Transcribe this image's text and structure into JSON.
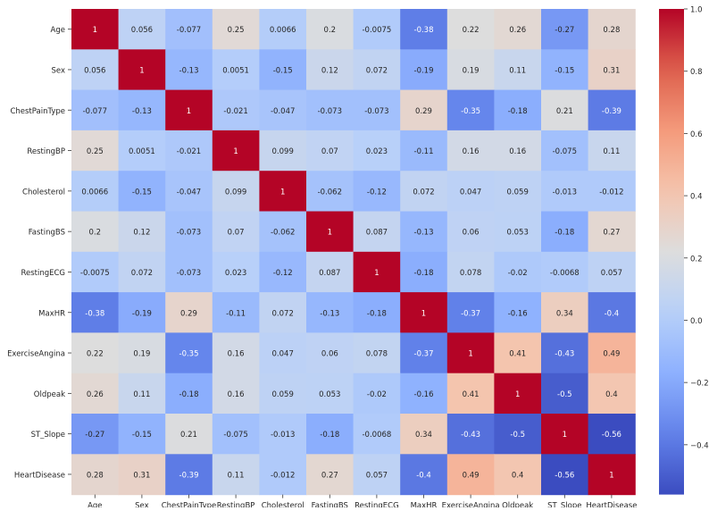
{
  "chart_data": {
    "type": "heatmap",
    "title": "",
    "xlabel": "",
    "ylabel": "",
    "x_labels": [
      "Age",
      "Sex",
      "ChestPainType",
      "RestingBP",
      "Cholesterol",
      "FastingBS",
      "RestingECG",
      "MaxHR",
      "ExerciseAngina",
      "Oldpeak",
      "ST_Slope",
      "HeartDisease"
    ],
    "y_labels": [
      "Age",
      "Sex",
      "ChestPainType",
      "RestingBP",
      "Cholesterol",
      "FastingBS",
      "RestingECG",
      "MaxHR",
      "ExerciseAngina",
      "Oldpeak",
      "ST_Slope",
      "HeartDisease"
    ],
    "values": [
      [
        1,
        0.056,
        -0.077,
        0.25,
        0.0066,
        0.2,
        -0.0075,
        -0.38,
        0.22,
        0.26,
        -0.27,
        0.28
      ],
      [
        0.056,
        1,
        -0.13,
        0.0051,
        -0.15,
        0.12,
        0.072,
        -0.19,
        0.19,
        0.11,
        -0.15,
        0.31
      ],
      [
        -0.077,
        -0.13,
        1,
        -0.021,
        -0.047,
        -0.073,
        -0.073,
        0.29,
        -0.35,
        -0.18,
        0.21,
        -0.39
      ],
      [
        0.25,
        0.0051,
        -0.021,
        1,
        0.099,
        0.07,
        0.023,
        -0.11,
        0.16,
        0.16,
        -0.075,
        0.11
      ],
      [
        0.0066,
        -0.15,
        -0.047,
        0.099,
        1,
        -0.062,
        -0.12,
        0.072,
        0.047,
        0.059,
        -0.013,
        -0.012
      ],
      [
        0.2,
        0.12,
        -0.073,
        0.07,
        -0.062,
        1,
        0.087,
        -0.13,
        0.06,
        0.053,
        -0.18,
        0.27
      ],
      [
        -0.0075,
        0.072,
        -0.073,
        0.023,
        -0.12,
        0.087,
        1,
        -0.18,
        0.078,
        -0.02,
        -0.0068,
        0.057
      ],
      [
        -0.38,
        -0.19,
        0.29,
        -0.11,
        0.072,
        -0.13,
        -0.18,
        1,
        -0.37,
        -0.16,
        0.34,
        -0.4
      ],
      [
        0.22,
        0.19,
        -0.35,
        0.16,
        0.047,
        0.06,
        0.078,
        -0.37,
        1,
        0.41,
        -0.43,
        0.49
      ],
      [
        0.26,
        0.11,
        -0.18,
        0.16,
        0.059,
        0.053,
        -0.02,
        -0.16,
        0.41,
        1,
        -0.5,
        0.4
      ],
      [
        -0.27,
        -0.15,
        0.21,
        -0.075,
        -0.013,
        -0.18,
        -0.0068,
        0.34,
        -0.43,
        -0.5,
        1,
        -0.56
      ],
      [
        0.28,
        0.31,
        -0.39,
        0.11,
        -0.012,
        0.27,
        0.057,
        -0.4,
        0.49,
        0.4,
        -0.56,
        1
      ]
    ],
    "colormap": "coolwarm",
    "color_range": [
      -0.56,
      1.0
    ],
    "colorbar_ticks": [
      "1.0",
      "0.8",
      "0.6",
      "0.4",
      "0.2",
      "0.0",
      "−0.2",
      "−0.4"
    ],
    "colorbar_tick_values": [
      1.0,
      0.8,
      0.6,
      0.4,
      0.2,
      0.0,
      -0.2,
      -0.4
    ],
    "annotation_labels": [
      [
        "1",
        "0.056",
        "-0.077",
        "0.25",
        "0.0066",
        "0.2",
        "-0.0075",
        "-0.38",
        "0.22",
        "0.26",
        "-0.27",
        "0.28"
      ],
      [
        "0.056",
        "1",
        "-0.13",
        "0.0051",
        "-0.15",
        "0.12",
        "0.072",
        "-0.19",
        "0.19",
        "0.11",
        "-0.15",
        "0.31"
      ],
      [
        "-0.077",
        "-0.13",
        "1",
        "-0.021",
        "-0.047",
        "-0.073",
        "-0.073",
        "0.29",
        "-0.35",
        "-0.18",
        "0.21",
        "-0.39"
      ],
      [
        "0.25",
        "0.0051",
        "-0.021",
        "1",
        "0.099",
        "0.07",
        "0.023",
        "-0.11",
        "0.16",
        "0.16",
        "-0.075",
        "0.11"
      ],
      [
        "0.0066",
        "-0.15",
        "-0.047",
        "0.099",
        "1",
        "-0.062",
        "-0.12",
        "0.072",
        "0.047",
        "0.059",
        "-0.013",
        "-0.012"
      ],
      [
        "0.2",
        "0.12",
        "-0.073",
        "0.07",
        "-0.062",
        "1",
        "0.087",
        "-0.13",
        "0.06",
        "0.053",
        "-0.18",
        "0.27"
      ],
      [
        "-0.0075",
        "0.072",
        "-0.073",
        "0.023",
        "-0.12",
        "0.087",
        "1",
        "-0.18",
        "0.078",
        "-0.02",
        "-0.0068",
        "0.057"
      ],
      [
        "-0.38",
        "-0.19",
        "0.29",
        "-0.11",
        "0.072",
        "-0.13",
        "-0.18",
        "1",
        "-0.37",
        "-0.16",
        "0.34",
        "-0.4"
      ],
      [
        "0.22",
        "0.19",
        "-0.35",
        "0.16",
        "0.047",
        "0.06",
        "0.078",
        "-0.37",
        "1",
        "0.41",
        "-0.43",
        "0.49"
      ],
      [
        "0.26",
        "0.11",
        "-0.18",
        "0.16",
        "0.059",
        "0.053",
        "-0.02",
        "-0.16",
        "0.41",
        "1",
        "-0.5",
        "0.4"
      ],
      [
        "-0.27",
        "-0.15",
        "0.21",
        "-0.075",
        "-0.013",
        "-0.18",
        "-0.0068",
        "0.34",
        "-0.43",
        "-0.5",
        "1",
        "-0.56"
      ],
      [
        "0.28",
        "0.31",
        "-0.39",
        "0.11",
        "-0.012",
        "0.27",
        "0.057",
        "-0.4",
        "0.49",
        "0.4",
        "-0.56",
        "1"
      ]
    ]
  }
}
